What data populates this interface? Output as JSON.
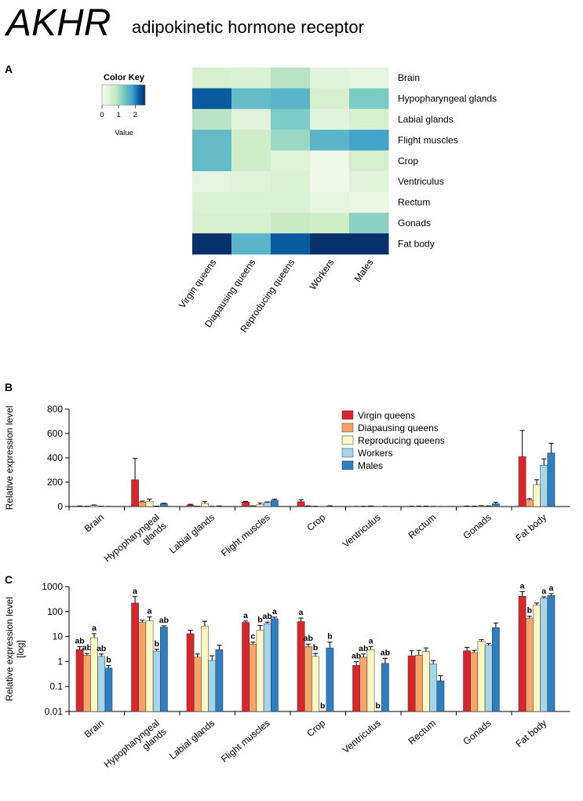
{
  "header": {
    "gene": "AKHR",
    "description": "adipokinetic hormone receptor"
  },
  "colors": {
    "virgin": "#d9262c",
    "diapausing": "#f6a46a",
    "reproducing": "#fdf7c4",
    "workers": "#a5d5e8",
    "males": "#2f7fc0",
    "heat_low": "#f7fcf0",
    "heat_mid": "#ccebc5",
    "heat_high": "#08306b"
  },
  "chart_data": [
    {
      "panel": "A",
      "type": "heatmap",
      "rows": [
        "Brain",
        "Hypopharyngeal glands",
        "Labial glands",
        "Flight muscles",
        "Crop",
        "Ventriculus",
        "Rectum",
        "Gonads",
        "Fat body"
      ],
      "columns": [
        "Virgin queens",
        "Diapausing queens",
        "Reproducing queens",
        "Workers",
        "Males"
      ],
      "values": [
        [
          0.6,
          0.5,
          0.9,
          0.4,
          0.3
        ],
        [
          2.3,
          1.5,
          1.6,
          0.6,
          1.3
        ],
        [
          0.9,
          0.4,
          1.3,
          0.4,
          0.6
        ],
        [
          1.5,
          0.7,
          1.1,
          1.6,
          1.8
        ],
        [
          1.5,
          0.7,
          0.4,
          0.1,
          0.6
        ],
        [
          0.3,
          0.4,
          0.5,
          0.1,
          0.4
        ],
        [
          0.5,
          0.5,
          0.5,
          0.3,
          0.2
        ],
        [
          0.6,
          0.6,
          0.8,
          0.7,
          1.2
        ],
        [
          2.6,
          1.6,
          2.3,
          2.6,
          2.6
        ]
      ],
      "color_key": {
        "title": "Color Key",
        "ticks": [
          "0",
          "1",
          "2"
        ],
        "label": "Value",
        "range": [
          0,
          2.6
        ]
      }
    },
    {
      "panel": "B",
      "type": "bar",
      "ylabel": "Relative expression level",
      "ylim": [
        0,
        800
      ],
      "yticks": [
        "0",
        "200",
        "400",
        "600",
        "800"
      ],
      "categories": [
        "Brain",
        "Hypopharyngeal glands",
        "Labial glands",
        "Flight muscles",
        "Crop",
        "Ventriculus",
        "Rectum",
        "Gonads",
        "Fat body"
      ],
      "series": [
        {
          "name": "Virgin queens",
          "values": [
            3,
            220,
            13,
            37,
            40,
            0.7,
            1.7,
            2.7,
            410
          ],
          "errors": [
            1,
            175,
            5,
            5,
            15,
            0.3,
            1,
            1,
            215
          ]
        },
        {
          "name": "Diapausing queens",
          "values": [
            1.8,
            37,
            1.5,
            5,
            4,
            1.5,
            1.8,
            2.3,
            55
          ],
          "errors": [
            0.3,
            8,
            0.5,
            1,
            1,
            0.5,
            1,
            0.5,
            10
          ]
        },
        {
          "name": "Reproducing queens",
          "values": [
            9,
            43,
            26,
            18,
            1.6,
            3,
            2.5,
            6.5,
            180
          ],
          "errors": [
            4,
            18,
            15,
            10,
            0.5,
            1,
            1,
            1,
            40
          ]
        },
        {
          "name": "Workers",
          "values": [
            1.6,
            2.6,
            1.1,
            33,
            0.01,
            0.01,
            0.8,
            4.5,
            340
          ],
          "errors": [
            0.4,
            0.5,
            0.6,
            5,
            0,
            0,
            0.3,
            0.8,
            50
          ]
        },
        {
          "name": "Males",
          "values": [
            0.55,
            24,
            3,
            52,
            3.5,
            0.85,
            0.17,
            23,
            440
          ],
          "errors": [
            0.15,
            3,
            1.5,
            8,
            2.5,
            0.5,
            0.1,
            12,
            80
          ]
        }
      ],
      "legend_position": "top-right"
    },
    {
      "panel": "C",
      "type": "bar",
      "ylabel": "Relative expression level [log]",
      "yscale": "log",
      "ylim": [
        0.01,
        1000
      ],
      "yticks": [
        "0.01",
        "0.1",
        "1",
        "10",
        "100",
        "1000"
      ],
      "categories": [
        "Brain",
        "Hypopharyngeal glands",
        "Labial glands",
        "Flight muscles",
        "Crop",
        "Ventriculus",
        "Rectum",
        "Gonads",
        "Fat body"
      ],
      "series_ref": "same as panel B",
      "significance": [
        [
          "ab",
          "ab",
          "a",
          "ab",
          "b"
        ],
        [
          "a",
          "",
          "a",
          "b",
          "ab"
        ],
        [
          "",
          "",
          "",
          "",
          ""
        ],
        [
          "a",
          "c",
          "b",
          "ab",
          "a"
        ],
        [
          "a",
          "ab",
          "b",
          "b",
          "b"
        ],
        [
          "ab",
          "ab",
          "a",
          "b",
          "ab"
        ],
        [
          "",
          "",
          "",
          "",
          ""
        ],
        [
          "",
          "",
          "",
          "",
          ""
        ],
        [
          "a",
          "b",
          "",
          "a",
          "a"
        ]
      ]
    }
  ]
}
